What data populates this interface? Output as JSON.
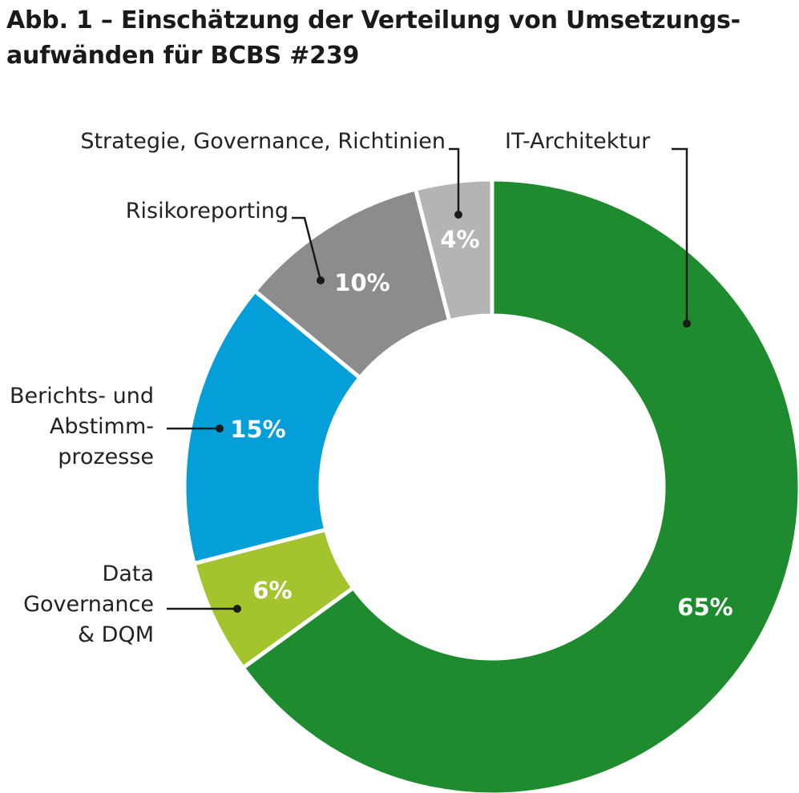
{
  "title": {
    "line1": "Abb. 1 – Einschätzung der Verteilung von Umsetzungs-",
    "line2": "aufwänden für BCBS #239"
  },
  "chart_data": {
    "type": "pie",
    "variant": "donut",
    "title": "Abb. 1 – Einschätzung der Verteilung von Umsetzungsaufwänden für BCBS #239",
    "unit": "%",
    "slices": [
      {
        "label": "IT-Architektur",
        "value": 65,
        "value_label": "65%",
        "color": "#1e8c2e"
      },
      {
        "label": "Data Governance & DQM",
        "value": 6,
        "value_label": "6%",
        "color": "#a3c42c"
      },
      {
        "label": "Berichts- und Abstimmprozesse",
        "value": 15,
        "value_label": "15%",
        "color": "#049fd9"
      },
      {
        "label": "Risikoreporting",
        "value": 10,
        "value_label": "10%",
        "color": "#8c8c8c"
      },
      {
        "label": "Strategie, Governance, Richtinien",
        "value": 4,
        "value_label": "4%",
        "color": "#b4b4b4"
      }
    ],
    "start_angle": "12 o'clock",
    "direction": "clockwise"
  },
  "callouts": {
    "it": [
      "IT-Architektur"
    ],
    "data_gov": [
      "Data",
      "Governance",
      "& DQM"
    ],
    "berichts": [
      "Berichts- und",
      "Abstimm-",
      "prozesse"
    ],
    "risiko": [
      "Risikoreporting"
    ],
    "strategie": [
      "Strategie, Governance, Richtinien"
    ]
  }
}
